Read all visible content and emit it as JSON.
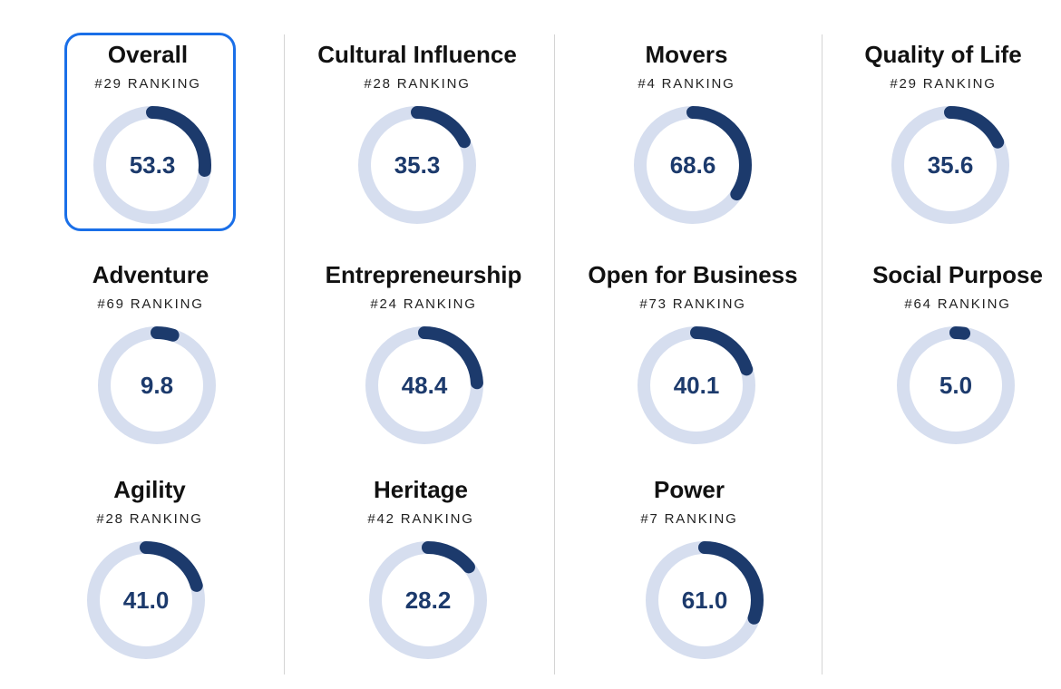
{
  "colors": {
    "gauge_fill": "#1c3a6c",
    "gauge_track": "#d6deef",
    "selection_border": "#1a6fe8"
  },
  "selected_metric": "Overall",
  "metrics": [
    {
      "title": "Overall",
      "rank": "#29 RANKING",
      "score": "53.3",
      "value": 53.3
    },
    {
      "title": "Cultural Influence",
      "rank": "#28 RANKING",
      "score": "35.3",
      "value": 35.3
    },
    {
      "title": "Movers",
      "rank": "#4 RANKING",
      "score": "68.6",
      "value": 68.6
    },
    {
      "title": "Quality of Life",
      "rank": "#29 RANKING",
      "score": "35.6",
      "value": 35.6
    },
    {
      "title": "Adventure",
      "rank": "#69 RANKING",
      "score": "9.8",
      "value": 9.8
    },
    {
      "title": "Entrepreneurship",
      "rank": "#24 RANKING",
      "score": "48.4",
      "value": 48.4
    },
    {
      "title": "Open for Business",
      "rank": "#73 RANKING",
      "score": "40.1",
      "value": 40.1
    },
    {
      "title": "Social Purpose",
      "rank": "#64 RANKING",
      "score": "5.0",
      "value": 5.0
    },
    {
      "title": "Agility",
      "rank": "#28 RANKING",
      "score": "41.0",
      "value": 41.0
    },
    {
      "title": "Heritage",
      "rank": "#42 RANKING",
      "score": "28.2",
      "value": 28.2
    },
    {
      "title": "Power",
      "rank": "#7 RANKING",
      "score": "61.0",
      "value": 61.0
    }
  ]
}
